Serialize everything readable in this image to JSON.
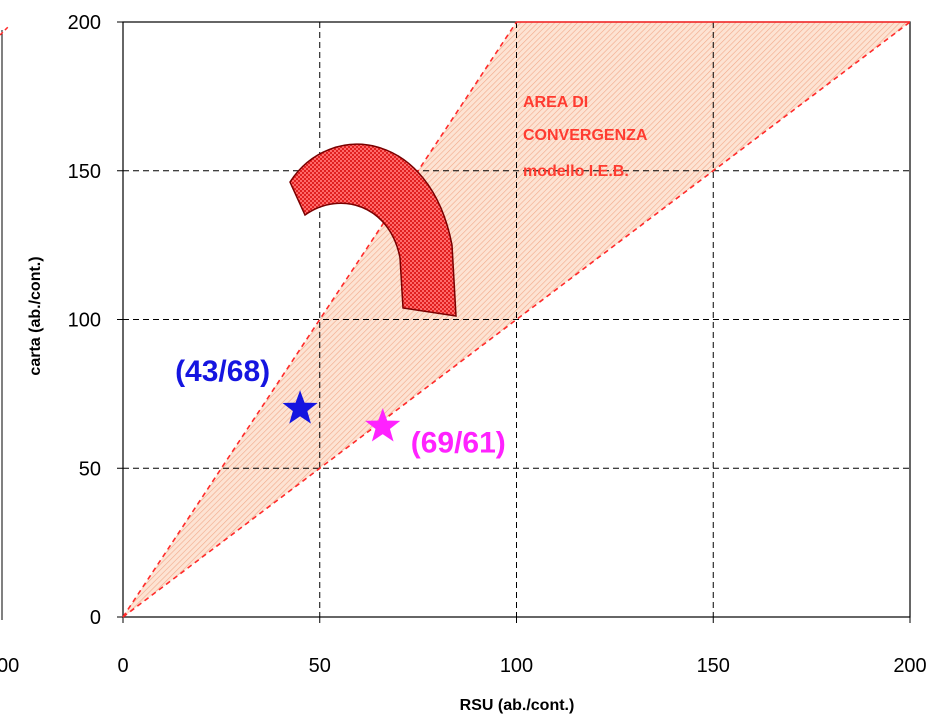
{
  "chart_data": {
    "type": "scatter",
    "title": "",
    "xlabel": "RSU (ab./cont.)",
    "ylabel": "carta  (ab./cont.)",
    "xlim": [
      0,
      200
    ],
    "ylim": [
      0,
      200
    ],
    "x_ticks": [
      "0",
      "50",
      "100",
      "150",
      "200"
    ],
    "y_ticks": [
      "0",
      "50",
      "100",
      "150",
      "200"
    ],
    "grid": "dashed",
    "left_clipped_labels": [
      "00"
    ],
    "convergence_area": {
      "label_lines": [
        "AREA DI",
        "CONVERGENZA",
        "modello I.E.B."
      ],
      "vertices": [
        [
          0,
          0
        ],
        [
          100,
          200
        ],
        [
          200,
          200
        ]
      ],
      "boundary_lines": [
        {
          "x": [
            0,
            100
          ],
          "y": [
            0,
            200
          ]
        },
        {
          "x": [
            0,
            200
          ],
          "y": [
            0,
            200
          ]
        }
      ],
      "fill_color": "#f9c5a8",
      "line_color": "#ff2a2a"
    },
    "points": [
      {
        "label": "(43/68)",
        "x": 45,
        "y": 70,
        "marker": "star",
        "color": "#1515e0"
      },
      {
        "label": "(69/61)",
        "x": 66,
        "y": 64,
        "marker": "star",
        "color": "#ff22ff"
      }
    ],
    "arrow": {
      "color": "#e83030",
      "shape": "curved",
      "direction": "clockwise-downward"
    }
  }
}
